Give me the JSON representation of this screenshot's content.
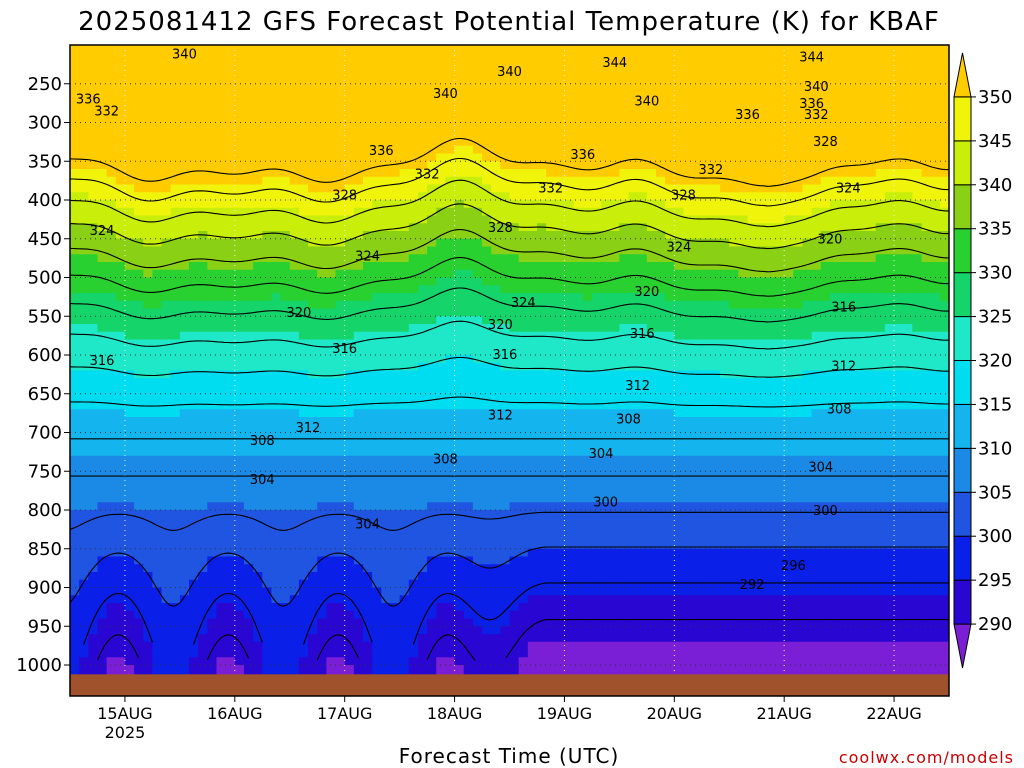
{
  "chart_data": {
    "type": "heatmap",
    "title": "2025081412 GFS Forecast Potential Temperature (K) for KBAF",
    "xlabel": "Forecast Time (UTC)",
    "ylabel": "",
    "credit": "coolwx.com/models",
    "y_axis": {
      "unit": "hPa",
      "inverted": true,
      "range": [
        200,
        1040
      ],
      "ticks": [
        250,
        300,
        350,
        400,
        450,
        500,
        550,
        600,
        650,
        700,
        750,
        800,
        850,
        900,
        950,
        1000
      ]
    },
    "x_axis": {
      "range_hours": [
        -12,
        180
      ],
      "ticks": [
        {
          "hour": 0,
          "label": "15AUG",
          "sublabel": "2025"
        },
        {
          "hour": 24,
          "label": "16AUG",
          "sublabel": ""
        },
        {
          "hour": 48,
          "label": "17AUG",
          "sublabel": ""
        },
        {
          "hour": 72,
          "label": "18AUG",
          "sublabel": ""
        },
        {
          "hour": 96,
          "label": "19AUG",
          "sublabel": ""
        },
        {
          "hour": 120,
          "label": "20AUG",
          "sublabel": ""
        },
        {
          "hour": 144,
          "label": "21AUG",
          "sublabel": ""
        },
        {
          "hour": 168,
          "label": "22AUG",
          "sublabel": ""
        }
      ]
    },
    "colorbar": {
      "levels": [
        285,
        290,
        295,
        300,
        305,
        310,
        315,
        320,
        325,
        330,
        335,
        340,
        345,
        350,
        355
      ],
      "labels": [
        290,
        295,
        300,
        305,
        310,
        315,
        320,
        325,
        330,
        335,
        340,
        345,
        350
      ],
      "colors": [
        "#7a1fd6",
        "#2a06d2",
        "#0a1fe8",
        "#1f55e0",
        "#1a8ae6",
        "#14b4ee",
        "#00dcf0",
        "#1ee8c8",
        "#14d46a",
        "#28d030",
        "#8ad014",
        "#c8ee0a",
        "#f0f40a",
        "#ffcc00"
      ]
    },
    "ground": {
      "pressure_hpa": 1012,
      "color": "#a0522d"
    },
    "contour_interval_k": 4,
    "contour_labels": [
      {
        "value": 340,
        "hour": 13,
        "p": 212
      },
      {
        "value": 336,
        "hour": -8,
        "p": 270
      },
      {
        "value": 332,
        "hour": -4,
        "p": 286
      },
      {
        "value": 324,
        "hour": -5,
        "p": 440
      },
      {
        "value": 316,
        "hour": -5,
        "p": 608
      },
      {
        "value": 340,
        "hour": 84,
        "p": 235
      },
      {
        "value": 344,
        "hour": 107,
        "p": 223
      },
      {
        "value": 344,
        "hour": 150,
        "p": 216
      },
      {
        "value": 340,
        "hour": 70,
        "p": 263
      },
      {
        "value": 340,
        "hour": 114,
        "p": 273
      },
      {
        "value": 340,
        "hour": 151,
        "p": 254
      },
      {
        "value": 336,
        "hour": 56,
        "p": 337
      },
      {
        "value": 336,
        "hour": 136,
        "p": 290
      },
      {
        "value": 336,
        "hour": 150,
        "p": 276
      },
      {
        "value": 336,
        "hour": 100,
        "p": 342
      },
      {
        "value": 332,
        "hour": 151,
        "p": 290
      },
      {
        "value": 332,
        "hour": 66,
        "p": 367
      },
      {
        "value": 332,
        "hour": 93,
        "p": 385
      },
      {
        "value": 332,
        "hour": 128,
        "p": 361
      },
      {
        "value": 328,
        "hour": 48,
        "p": 394
      },
      {
        "value": 328,
        "hour": 153,
        "p": 325
      },
      {
        "value": 328,
        "hour": 122,
        "p": 394
      },
      {
        "value": 328,
        "hour": 82,
        "p": 436
      },
      {
        "value": 324,
        "hour": 158,
        "p": 385
      },
      {
        "value": 324,
        "hour": 53,
        "p": 473
      },
      {
        "value": 324,
        "hour": 121,
        "p": 461
      },
      {
        "value": 324,
        "hour": 87,
        "p": 533
      },
      {
        "value": 320,
        "hour": 154,
        "p": 451
      },
      {
        "value": 320,
        "hour": 38,
        "p": 546
      },
      {
        "value": 320,
        "hour": 114,
        "p": 519
      },
      {
        "value": 320,
        "hour": 82,
        "p": 561
      },
      {
        "value": 316,
        "hour": 157,
        "p": 539
      },
      {
        "value": 316,
        "hour": 48,
        "p": 592
      },
      {
        "value": 316,
        "hour": 83,
        "p": 600
      },
      {
        "value": 316,
        "hour": 113,
        "p": 573
      },
      {
        "value": 312,
        "hour": 157,
        "p": 615
      },
      {
        "value": 312,
        "hour": 40,
        "p": 694
      },
      {
        "value": 312,
        "hour": 82,
        "p": 678
      },
      {
        "value": 312,
        "hour": 112,
        "p": 640
      },
      {
        "value": 308,
        "hour": 156,
        "p": 670
      },
      {
        "value": 308,
        "hour": 30,
        "p": 711
      },
      {
        "value": 308,
        "hour": 70,
        "p": 735
      },
      {
        "value": 308,
        "hour": 110,
        "p": 683
      },
      {
        "value": 304,
        "hour": 30,
        "p": 761
      },
      {
        "value": 304,
        "hour": 53,
        "p": 819
      },
      {
        "value": 304,
        "hour": 104,
        "p": 728
      },
      {
        "value": 304,
        "hour": 152,
        "p": 745
      },
      {
        "value": 300,
        "hour": 105,
        "p": 790
      },
      {
        "value": 300,
        "hour": 153,
        "p": 801
      },
      {
        "value": 296,
        "hour": 146,
        "p": 872
      },
      {
        "value": 292,
        "hour": 137,
        "p": 897
      }
    ]
  }
}
